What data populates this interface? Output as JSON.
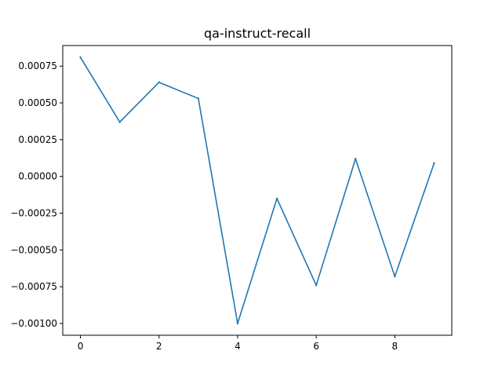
{
  "chart_data": {
    "type": "line",
    "title": "qa-instruct-recall",
    "xlabel": "",
    "ylabel": "",
    "x": [
      0,
      1,
      2,
      3,
      4,
      5,
      6,
      7,
      8,
      9
    ],
    "series": [
      {
        "values": [
          0.00081,
          0.00037,
          0.00064,
          0.00053,
          -0.001,
          -0.00015,
          -0.00074,
          0.00012,
          -0.00068,
          9e-05
        ],
        "color": "#1f77b4"
      }
    ],
    "xlim": [
      -0.45,
      9.45
    ],
    "ylim": [
      -0.00108,
      0.00089
    ],
    "xticks": [
      0,
      2,
      4,
      6,
      8
    ],
    "xtick_labels": [
      "0",
      "2",
      "4",
      "6",
      "8"
    ],
    "yticks": [
      0.00075,
      0.0005,
      0.00025,
      0,
      -0.00025,
      -0.0005,
      -0.00075,
      -0.001
    ],
    "ytick_labels": [
      "0.00075",
      "0.00050",
      "0.00025",
      "0.00000",
      "−0.00025",
      "−0.00050",
      "−0.00075",
      "−0.00100"
    ],
    "grid": false,
    "legend": "none"
  }
}
